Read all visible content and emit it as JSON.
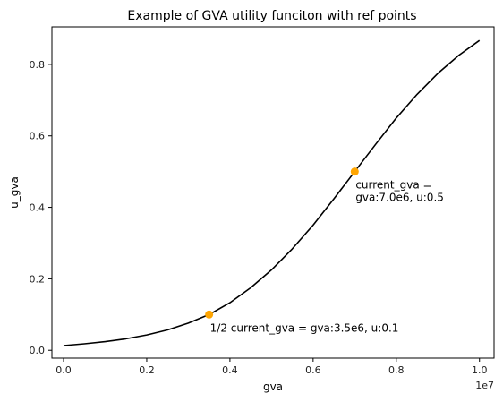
{
  "chart_data": {
    "type": "line",
    "title": "Example of GVA utility funciton with ref points",
    "xlabel": "gva",
    "ylabel": "u_gva",
    "x_multiplier_label": "1e7",
    "xlim": [
      -280000.0,
      10350000.0
    ],
    "ylim": [
      -0.022,
      0.905
    ],
    "grid": false,
    "x_ticks": [
      0,
      2000000,
      4000000,
      6000000,
      8000000,
      10000000
    ],
    "x_tick_labels": [
      "0.0",
      "0.2",
      "0.4",
      "0.6",
      "0.8",
      "1.0"
    ],
    "y_ticks": [
      0.0,
      0.2,
      0.4,
      0.6,
      0.8
    ],
    "y_tick_labels": [
      "0.0",
      "0.2",
      "0.4",
      "0.6",
      "0.8"
    ],
    "series": [
      {
        "color": "#000000",
        "x": [
          0,
          500000,
          1000000,
          1500000,
          2000000,
          2500000,
          3000000,
          3500000,
          4000000,
          4500000,
          5000000,
          5500000,
          6000000,
          6500000,
          7000000,
          7500000,
          8000000,
          8500000,
          9000000,
          9500000,
          10000000
        ],
        "y": [
          0.013,
          0.018,
          0.024,
          0.032,
          0.043,
          0.057,
          0.076,
          0.1,
          0.133,
          0.175,
          0.225,
          0.284,
          0.35,
          0.424,
          0.5,
          0.576,
          0.65,
          0.716,
          0.775,
          0.825,
          0.867
        ]
      }
    ],
    "ref_points": [
      {
        "x": 3500000,
        "y": 0.1,
        "color": "#ffa500",
        "label_lines": [
          "1/2 current_gva = gva:3.5e6, u:0.1"
        ]
      },
      {
        "x": 7000000,
        "y": 0.5,
        "color": "#ffa500",
        "label_lines": [
          "current_gva =",
          "gva:7.0e6, u:0.5"
        ]
      }
    ]
  }
}
